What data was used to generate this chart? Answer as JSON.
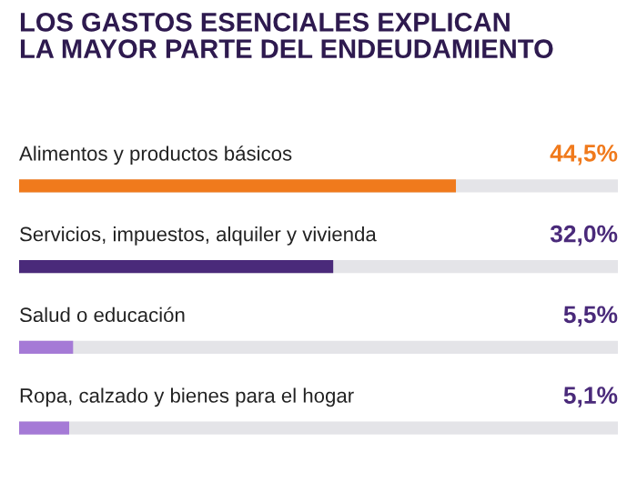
{
  "chart_data": {
    "type": "bar",
    "orientation": "horizontal",
    "title": "LOS GASTOS ESENCIALES EXPLICAN\nLA MAYOR PARTE DEL ENDEUDAMIENTO",
    "categories": [
      "Alimentos y productos básicos",
      "Servicios, impuestos, alquiler y vivienda",
      "Salud o educación",
      "Ropa, calzado y bienes para el hogar"
    ],
    "values": [
      44.5,
      32.0,
      5.5,
      5.1
    ],
    "colors": [
      "#f07a1c",
      "#4a2a7a",
      "#a57ad6",
      "#a57ad6"
    ],
    "value_labels": [
      "44,5%",
      "32,0%",
      "5,5%",
      "5,1%"
    ],
    "xlim": [
      0,
      61
    ]
  }
}
